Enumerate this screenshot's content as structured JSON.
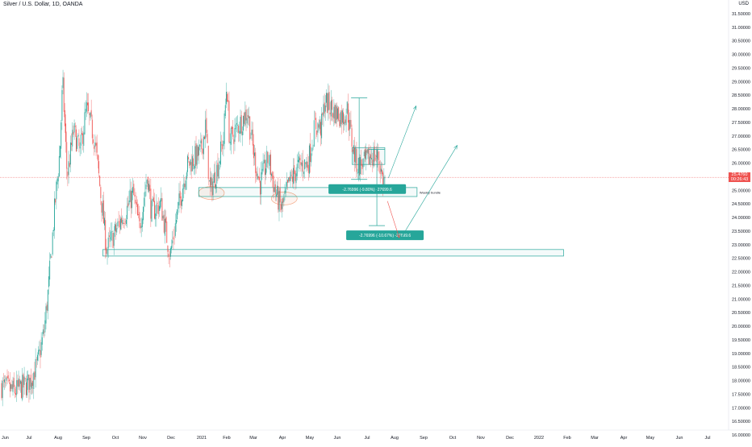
{
  "symbol": {
    "title": "Silver / U.S. Dollar, 1D, OANDA",
    "currency": "USD"
  },
  "price_badge": {
    "price": "25.4760",
    "countdown": "00:26:43"
  },
  "colors": {
    "up": "#26a69a",
    "down": "#ef5350",
    "box": "#26a69a",
    "ellipse": "#f4a582",
    "price_line": "#ef5350",
    "axis_text": "#131722",
    "grid": "#f0f3fa"
  },
  "chart_data": {
    "type": "candlestick",
    "title": "Silver / U.S. Dollar, 1D, OANDA",
    "xlabel": "",
    "ylabel": "",
    "grid": false,
    "ylim": [
      16.0,
      32.0
    ],
    "y_ticks": [
      "16.00000",
      "16.50000",
      "17.00000",
      "17.50000",
      "18.00000",
      "18.50000",
      "19.00000",
      "19.50000",
      "20.00000",
      "20.50000",
      "21.00000",
      "21.50000",
      "22.00000",
      "22.50000",
      "23.00000",
      "23.50000",
      "24.00000",
      "24.50000",
      "25.00000",
      "25.50000",
      "26.00000",
      "26.50000",
      "27.00000",
      "27.50000",
      "28.00000",
      "28.50000",
      "29.00000",
      "29.50000",
      "30.00000",
      "30.50000",
      "31.00000",
      "31.50000"
    ],
    "x_ticks": [
      "Jun",
      "Jul",
      "Aug",
      "Sep",
      "Oct",
      "Nov",
      "Dec",
      "2021",
      "Feb",
      "Mar",
      "Apr",
      "May",
      "Jun",
      "Jul",
      "Aug",
      "Sep",
      "Oct",
      "Nov",
      "Dec",
      "2022",
      "Feb",
      "Mar",
      "Apr",
      "May",
      "Jun",
      "Jul"
    ],
    "price_path": [
      {
        "date": "2020-06-01",
        "close": 17.8
      },
      {
        "date": "2020-06-15",
        "close": 17.6
      },
      {
        "date": "2020-07-01",
        "close": 17.9
      },
      {
        "date": "2020-07-10",
        "close": 18.6
      },
      {
        "date": "2020-07-17",
        "close": 19.8
      },
      {
        "date": "2020-07-22",
        "close": 21.5
      },
      {
        "date": "2020-07-28",
        "close": 24.2
      },
      {
        "date": "2020-08-03",
        "close": 26.5
      },
      {
        "date": "2020-08-06",
        "close": 29.0
      },
      {
        "date": "2020-08-11",
        "close": 25.5
      },
      {
        "date": "2020-08-18",
        "close": 27.2
      },
      {
        "date": "2020-08-25",
        "close": 26.4
      },
      {
        "date": "2020-09-01",
        "close": 28.0
      },
      {
        "date": "2020-09-10",
        "close": 26.8
      },
      {
        "date": "2020-09-22",
        "close": 22.8
      },
      {
        "date": "2020-09-30",
        "close": 23.4
      },
      {
        "date": "2020-10-07",
        "close": 23.9
      },
      {
        "date": "2020-10-14",
        "close": 24.3
      },
      {
        "date": "2020-10-21",
        "close": 24.9
      },
      {
        "date": "2020-10-28",
        "close": 23.6
      },
      {
        "date": "2020-11-06",
        "close": 25.6
      },
      {
        "date": "2020-11-10",
        "close": 24.2
      },
      {
        "date": "2020-11-20",
        "close": 24.5
      },
      {
        "date": "2020-11-30",
        "close": 22.6
      },
      {
        "date": "2020-12-08",
        "close": 24.3
      },
      {
        "date": "2020-12-17",
        "close": 25.9
      },
      {
        "date": "2020-12-31",
        "close": 26.4
      },
      {
        "date": "2021-01-06",
        "close": 27.4
      },
      {
        "date": "2021-01-11",
        "close": 24.9
      },
      {
        "date": "2021-01-20",
        "close": 25.8
      },
      {
        "date": "2021-01-28",
        "close": 26.9
      },
      {
        "date": "2021-02-01",
        "close": 29.0
      },
      {
        "date": "2021-02-04",
        "close": 26.8
      },
      {
        "date": "2021-02-12",
        "close": 27.3
      },
      {
        "date": "2021-02-23",
        "close": 27.9
      },
      {
        "date": "2021-03-01",
        "close": 26.4
      },
      {
        "date": "2021-03-08",
        "close": 25.2
      },
      {
        "date": "2021-03-17",
        "close": 26.2
      },
      {
        "date": "2021-03-24",
        "close": 25.0
      },
      {
        "date": "2021-03-31",
        "close": 24.3
      },
      {
        "date": "2021-04-09",
        "close": 25.3
      },
      {
        "date": "2021-04-19",
        "close": 25.9
      },
      {
        "date": "2021-04-29",
        "close": 26.0
      },
      {
        "date": "2021-05-07",
        "close": 27.4
      },
      {
        "date": "2021-05-14",
        "close": 27.3
      },
      {
        "date": "2021-05-18",
        "close": 28.3
      },
      {
        "date": "2021-05-28",
        "close": 27.9
      },
      {
        "date": "2021-06-07",
        "close": 27.7
      },
      {
        "date": "2021-06-11",
        "close": 28.0
      },
      {
        "date": "2021-06-16",
        "close": 26.7
      },
      {
        "date": "2021-06-21",
        "close": 25.9
      },
      {
        "date": "2021-06-29",
        "close": 26.0
      },
      {
        "date": "2021-07-06",
        "close": 26.3
      },
      {
        "date": "2021-07-14",
        "close": 26.2
      },
      {
        "date": "2021-07-19",
        "close": 25.3
      },
      {
        "date": "2021-07-22",
        "close": 25.5
      }
    ],
    "annotations": [
      {
        "type": "zone",
        "label": "Weekly bundle",
        "y_range": [
          24.77,
          25.1
        ],
        "x_range": [
          "2020-12-29",
          "2021-08-25"
        ]
      },
      {
        "type": "zone",
        "label": "",
        "y_range": [
          22.58,
          22.82
        ],
        "x_range": [
          "2020-09-18",
          "2022-01-28"
        ]
      },
      {
        "type": "zone",
        "label": "",
        "y_range": [
          25.95,
          26.57
        ],
        "x_range": [
          "2021-06-16",
          "2021-07-21"
        ]
      },
      {
        "type": "measure",
        "label": "-2.76996 (-9.80%) -27699.6",
        "y_range": [
          25.4,
          28.4
        ],
        "x": "2021-06-23"
      },
      {
        "type": "measure",
        "label": "-2.76996 (-10.67%) -27699.6",
        "y_range": [
          23.7,
          26.5
        ],
        "x": "2021-07-12"
      },
      {
        "type": "arrow",
        "direction": "up",
        "from_date": "2021-07-25",
        "from_price": 25.45,
        "to_date": "2021-08-24",
        "to_price": 28.1
      },
      {
        "type": "arrow",
        "direction": "down",
        "from_date": "2021-07-24",
        "from_price": 24.6,
        "to_date": "2021-08-06",
        "to_price": 23.25
      },
      {
        "type": "arrow",
        "direction": "up",
        "from_date": "2021-08-08",
        "from_price": 23.25,
        "to_date": "2021-10-06",
        "to_price": 26.65
      },
      {
        "type": "ellipse",
        "center_date": "2021-01-13",
        "center_price": 24.9
      },
      {
        "type": "ellipse",
        "center_date": "2021-04-03",
        "center_price": 24.7
      }
    ],
    "last_price": 25.476
  }
}
